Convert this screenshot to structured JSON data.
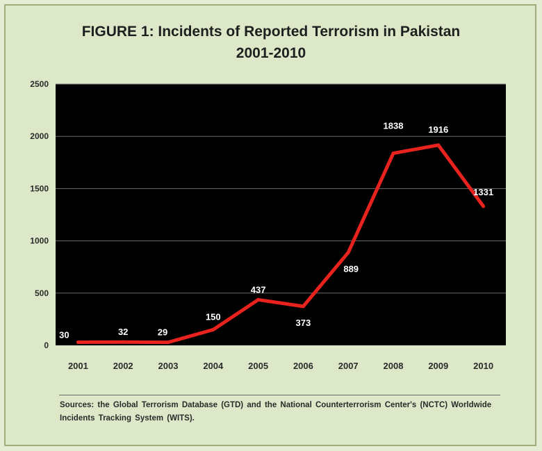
{
  "chart_data": {
    "type": "line",
    "title": "FIGURE 1: Incidents of Reported Terrorism in Pakistan",
    "subtitle": "2001-2010",
    "categories": [
      "2001",
      "2002",
      "2003",
      "2004",
      "2005",
      "2006",
      "2007",
      "2008",
      "2009",
      "2010"
    ],
    "series": [
      {
        "values": [
          30,
          32,
          29,
          150,
          437,
          373,
          889,
          1838,
          1916,
          1331
        ],
        "color": "#e8231e"
      }
    ],
    "data_labels": [
      "30",
      "32",
      "29",
      "150",
      "437",
      "373",
      "889",
      "1838",
      "1916",
      "1331"
    ],
    "ylim": [
      0,
      2500
    ],
    "yticks": [
      "0",
      "500",
      "1000",
      "1500",
      "2000",
      "2500"
    ],
    "grid": true,
    "plot_background": "#000000",
    "gridline_color": "#6e6e6e"
  },
  "source_note": "Sources: the Global Terrorism Database (GTD) and the National Counterterrorism Center's (NCTC) Worldwide Incidents Tracking System (WITS)."
}
